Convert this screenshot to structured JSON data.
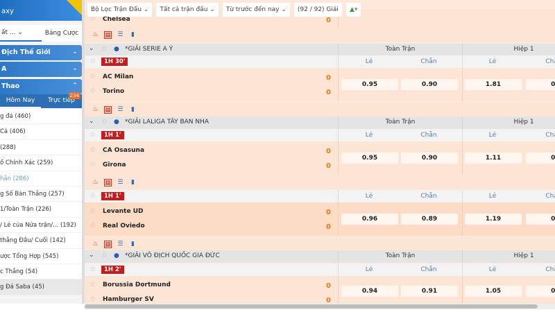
{
  "sidebar": {
    "banner": "axy",
    "tabs": [
      "ất ...",
      "Bảng Cược"
    ],
    "sections": [
      "Địch Thế Giới",
      "A",
      "Thao"
    ],
    "subtabs": [
      "Hôm Nay",
      "Trực tiếp"
    ],
    "live_count": "234",
    "items": [
      "g đá (460)",
      "Cả (406)",
      "(288)",
      "ố Chính Xác (259)",
      "hẳn (286)",
      "g Số Bàn Thắng (257)",
      "1/Toàn Trận (226)",
      "/ Lẻ của Nửa trận/...  (192)",
      "thắng Đầu/ Cuối (142)",
      "ược Tổng Hợp (545)",
      "c Thắng (54)",
      "g Đá Saba (45)"
    ]
  },
  "toolbar": {
    "filter": "Bộ Lọc Trận Đấu",
    "matches": "Tất cả trận đấu",
    "time": "Từ trước đến nay",
    "count": "(92 / 92) Giải"
  },
  "columns": {
    "full": "Toàn Trận",
    "half": "Hiệp 1",
    "odd": "Lẻ",
    "even": "Chẵn"
  },
  "prev": {
    "team": "Chelsea",
    "score": "0"
  },
  "matches": [
    {
      "league": "*GIẢI SERIE A Ý",
      "time": "1H 30'",
      "home": "AC Milan",
      "away": "Torino",
      "hs": "0",
      "as": "0",
      "odds": [
        "0.95",
        "0.90",
        "1.81",
        "0."
      ]
    },
    {
      "league": "*GIẢI LALIGA TÂY BAN NHA",
      "time": "1H 1'",
      "home": "CA Osasuna",
      "away": "Girona",
      "hs": "0",
      "as": "0",
      "odds": [
        "0.95",
        "0.90",
        "1.11",
        "0."
      ]
    },
    {
      "league": "",
      "time": "1H 1'",
      "home": "Levante UD",
      "away": "Real Oviedo",
      "hs": "0",
      "as": "0",
      "odds": [
        "0.96",
        "0.89",
        "1.19",
        "0."
      ]
    },
    {
      "league": "*GIẢI VÔ ĐỊCH QUỐC GIA ĐỨC",
      "time": "1H 2'",
      "home": "Borussia Dortmund",
      "away": "Hamburger SV",
      "hs": "0",
      "as": "0",
      "odds": [
        "0.94",
        "0.91",
        "1.05",
        "0."
      ]
    }
  ]
}
